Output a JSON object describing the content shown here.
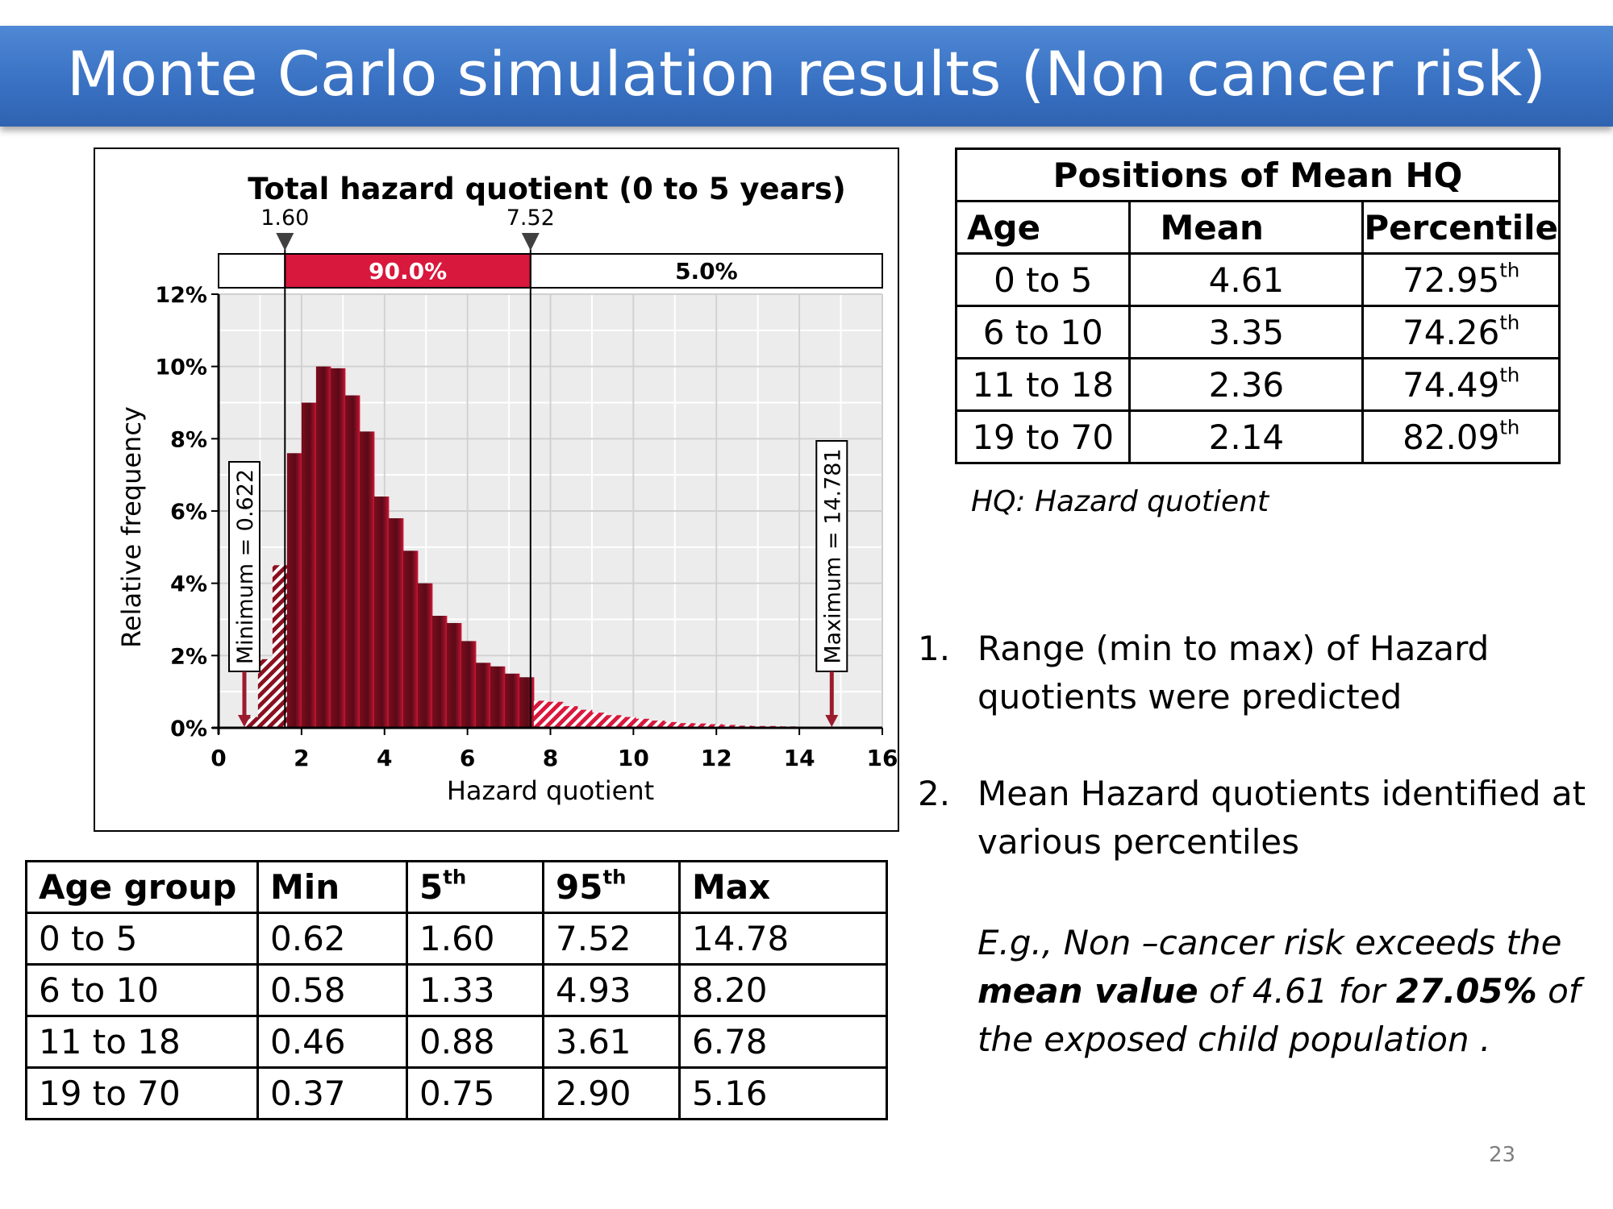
{
  "slide": {
    "title": "Monte Carlo simulation results (Non cancer risk)",
    "page_number": "23"
  },
  "chart_data": {
    "type": "bar",
    "title": "Total hazard quotient (0 to 5 years)",
    "xlabel": "Hazard quotient",
    "ylabel": "Relative frequency",
    "xlim": [
      0,
      16
    ],
    "ylim": [
      0,
      12
    ],
    "xticks": [
      "0",
      "2",
      "4",
      "6",
      "8",
      "10",
      "12",
      "14",
      "16"
    ],
    "yticks": [
      "0%",
      "2%",
      "4%",
      "6%",
      "8%",
      "10%",
      "12%"
    ],
    "grid": true,
    "bin_width": 0.35,
    "bins_x": [
      0.6,
      0.95,
      1.3,
      1.65,
      2.0,
      2.35,
      2.7,
      3.05,
      3.4,
      3.75,
      4.1,
      4.45,
      4.8,
      5.15,
      5.5,
      5.85,
      6.2,
      6.55,
      6.9,
      7.25,
      7.6,
      7.95,
      8.3,
      8.65,
      9.0,
      9.35,
      9.7,
      10.05,
      10.4,
      10.75,
      11.1,
      11.45,
      11.8,
      12.15,
      12.5,
      12.85,
      13.2,
      13.55,
      13.9,
      14.25,
      14.6
    ],
    "values": [
      0.3,
      1.9,
      4.5,
      7.6,
      9.0,
      10.0,
      9.95,
      9.2,
      8.2,
      6.4,
      5.8,
      4.9,
      4.0,
      3.1,
      2.9,
      2.4,
      1.8,
      1.7,
      1.5,
      1.4,
      0.75,
      0.72,
      0.6,
      0.5,
      0.42,
      0.35,
      0.3,
      0.25,
      0.2,
      0.16,
      0.13,
      0.12,
      0.1,
      0.08,
      0.06,
      0.05,
      0.05,
      0.04,
      0.03,
      0.03,
      0.02
    ],
    "delimiters": [
      {
        "value": 1.6,
        "label": "1.60"
      },
      {
        "value": 7.52,
        "label": "7.52"
      }
    ],
    "band_labels": {
      "middle": "90.0%",
      "right": "5.0%"
    },
    "minimum_label": "Minimum = 0.622",
    "minimum_value": 0.622,
    "maximum_label": "Maximum = 14.781",
    "maximum_value": 14.781,
    "colors": {
      "body": "#8a1020",
      "tail": "#d8183c",
      "band": "#d8183c",
      "plot_bg": "#ececec"
    }
  },
  "hq_table": {
    "title": "Positions of  Mean  HQ",
    "headers": [
      "Age",
      "Mean",
      "Percentile"
    ],
    "rows": [
      {
        "age": "0 to 5",
        "mean": "4.61",
        "pct": "72.95",
        "sup": "th"
      },
      {
        "age": "6 to 10",
        "mean": "3.35",
        "pct": "74.26",
        "sup": "th"
      },
      {
        "age": "11 to 18",
        "mean": "2.36",
        "pct": "74.49",
        "sup": "th"
      },
      {
        "age": "19 to 70",
        "mean": "2.14",
        "pct": "82.09",
        "sup": "th"
      }
    ]
  },
  "hq_note": "HQ: Hazard quotient",
  "stats_table": {
    "headers": [
      {
        "text": "Age group",
        "sup": ""
      },
      {
        "text": "Min",
        "sup": ""
      },
      {
        "text": "5",
        "sup": "th"
      },
      {
        "text": "95",
        "sup": "th"
      },
      {
        "text": "Max",
        "sup": ""
      }
    ],
    "rows": [
      [
        "0 to 5",
        "0.62",
        "1.60",
        "7.52",
        "14.78"
      ],
      [
        "6 to 10",
        "0.58",
        "1.33",
        "4.93",
        "8.20"
      ],
      [
        "11 to 18",
        "0.46",
        "0.88",
        "3.61",
        "6.78"
      ],
      [
        "19 to 70",
        "0.37",
        "0.75",
        "2.90",
        "5.16"
      ]
    ]
  },
  "points": [
    {
      "num": "1.",
      "text": "Range (min to max) of Hazard quotients were predicted"
    },
    {
      "num": "2.",
      "text": "Mean Hazard quotients identified at various percentiles"
    }
  ],
  "example": {
    "prefix": "E.g., Non –cancer risk exceeds the ",
    "bold1": "mean value",
    "mid": " of 4.61 for ",
    "bold2": "27.05%",
    "suffix": "  of the exposed child population ."
  }
}
